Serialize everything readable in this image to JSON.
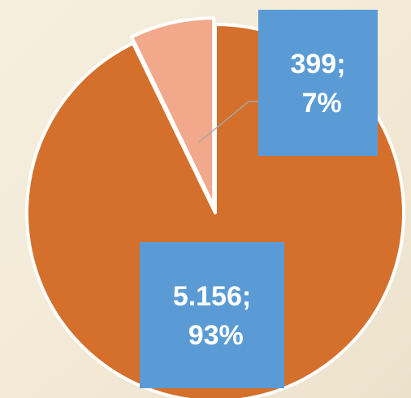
{
  "chart_data": {
    "type": "pie",
    "categories": [
      null,
      null
    ],
    "values": [
      5156,
      399
    ],
    "value_labels": [
      "5.156; 93%",
      "399; 7%"
    ],
    "colors": [
      "#d4702b",
      "#f2a88a"
    ],
    "label_color": "#5b9bd5"
  }
}
